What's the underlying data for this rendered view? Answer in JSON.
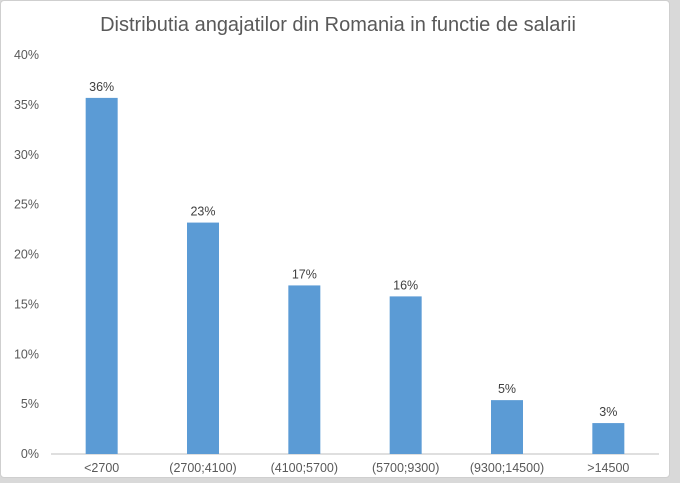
{
  "chart_data": {
    "type": "bar",
    "title": "Distributia angajatilor din Romania in functie de salarii",
    "xlabel": "",
    "ylabel": "",
    "categories": [
      "<2700",
      "(2700;4100)",
      "(4100;5700)",
      "(5700;9300)",
      "(9300;14500)",
      ">14500"
    ],
    "values": [
      35.7,
      23.2,
      16.9,
      15.8,
      5.4,
      3.1
    ],
    "data_labels": [
      "36%",
      "23%",
      "17%",
      "16%",
      "5%",
      "3%"
    ],
    "ylim": [
      0,
      40
    ],
    "yticks": [
      0,
      5,
      10,
      15,
      20,
      25,
      30,
      35,
      40
    ],
    "ytick_labels": [
      "0%",
      "5%",
      "10%",
      "15%",
      "20%",
      "25%",
      "30%",
      "35%",
      "40%"
    ],
    "grid": false,
    "legend": "none",
    "bar_color": "#5b9bd5",
    "axis_color": "#bfbfbf"
  }
}
